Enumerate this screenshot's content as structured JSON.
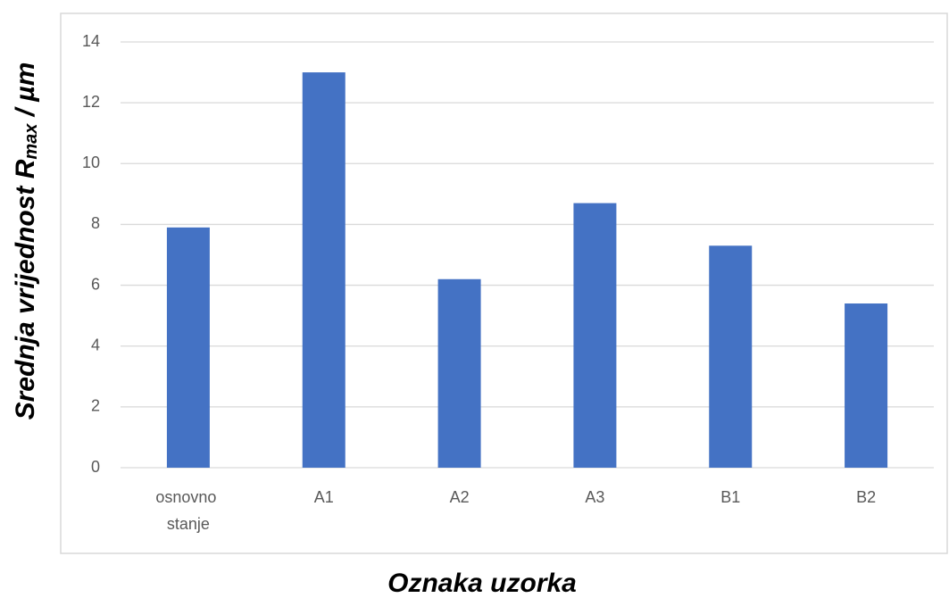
{
  "chart_data": {
    "type": "bar",
    "xlabel": "Oznaka uzorka",
    "ylabel_parts": [
      "Srednja vrijednost R",
      "max",
      " / µm"
    ],
    "categories": [
      "osnovno stanje",
      "A1",
      "A2",
      "A3",
      "B1",
      "B2"
    ],
    "values": [
      7.9,
      13.0,
      6.2,
      8.7,
      7.3,
      5.4
    ],
    "color": "#4472c4",
    "ylim": [
      0,
      14
    ],
    "yticks": [
      0,
      2,
      4,
      6,
      8,
      10,
      12,
      14
    ],
    "grid": true
  }
}
